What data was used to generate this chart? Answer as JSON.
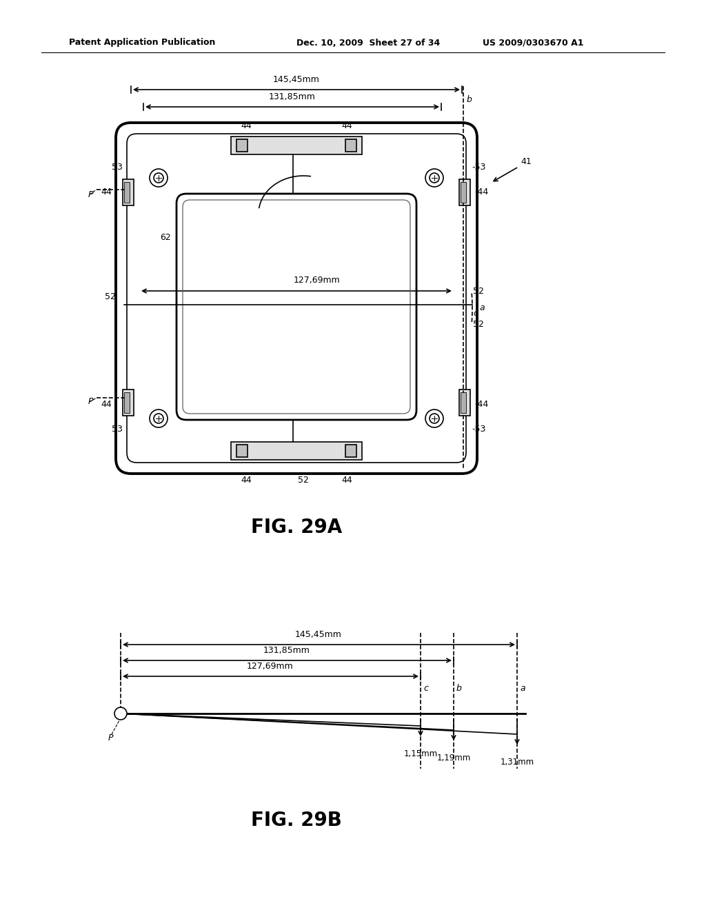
{
  "bg_color": "#ffffff",
  "text_color": "#000000",
  "header_left": "Patent Application Publication",
  "header_mid": "Dec. 10, 2009  Sheet 27 of 34",
  "header_right": "US 2009/0303670 A1",
  "fig29a_label": "FIG. 29A",
  "fig29b_label": "FIG. 29B",
  "dim_145": "145,45mm",
  "dim_131": "131,85mm",
  "dim_127": "127,69mm",
  "dim_c": "1,15mm",
  "dim_b": "1,19mm",
  "dim_a": "1,31mm"
}
